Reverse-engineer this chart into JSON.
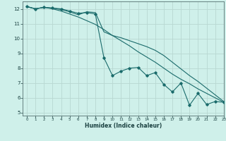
{
  "xlabel": "Humidex (Indice chaleur)",
  "xlim": [
    -0.5,
    23
  ],
  "ylim": [
    4.8,
    12.5
  ],
  "xticks": [
    0,
    1,
    2,
    3,
    4,
    5,
    6,
    7,
    8,
    9,
    10,
    11,
    12,
    13,
    14,
    15,
    16,
    17,
    18,
    19,
    20,
    21,
    22,
    23
  ],
  "yticks": [
    5,
    6,
    7,
    8,
    9,
    10,
    11,
    12
  ],
  "background_color": "#cff0ea",
  "grid_color": "#b8d8d2",
  "line_color": "#1a6b6b",
  "line1_x": [
    0,
    1,
    2,
    3,
    4,
    5,
    6,
    7,
    8,
    9,
    10,
    11,
    12,
    13,
    14,
    15,
    16,
    17,
    18,
    19,
    20,
    21,
    22,
    23
  ],
  "line1_y": [
    12.15,
    12.0,
    12.1,
    12.05,
    12.0,
    11.85,
    11.7,
    11.75,
    11.65,
    8.7,
    7.5,
    7.8,
    8.0,
    8.05,
    7.5,
    7.7,
    6.9,
    6.4,
    7.0,
    5.5,
    6.3,
    5.55,
    5.75,
    5.7
  ],
  "line2_x": [
    0,
    1,
    2,
    3,
    4,
    5,
    6,
    7,
    8,
    9,
    10,
    11,
    12,
    13,
    14,
    15,
    16,
    17,
    18,
    19,
    20,
    21,
    22,
    23
  ],
  "line2_y": [
    12.15,
    12.0,
    12.1,
    12.0,
    11.85,
    11.65,
    11.45,
    11.2,
    10.95,
    10.6,
    10.2,
    9.85,
    9.5,
    9.1,
    8.75,
    8.4,
    8.0,
    7.6,
    7.25,
    6.95,
    6.6,
    6.3,
    6.0,
    5.7
  ],
  "line3_x": [
    0,
    1,
    2,
    3,
    4,
    5,
    6,
    7,
    8,
    9,
    10,
    11,
    12,
    13,
    14,
    15,
    16,
    17,
    18,
    19,
    20,
    21,
    22,
    23
  ],
  "line3_y": [
    12.15,
    12.0,
    12.1,
    12.05,
    11.95,
    11.8,
    11.6,
    11.8,
    11.75,
    10.45,
    10.2,
    10.05,
    9.85,
    9.65,
    9.45,
    9.2,
    8.85,
    8.4,
    7.95,
    7.5,
    7.1,
    6.65,
    6.2,
    5.75
  ]
}
